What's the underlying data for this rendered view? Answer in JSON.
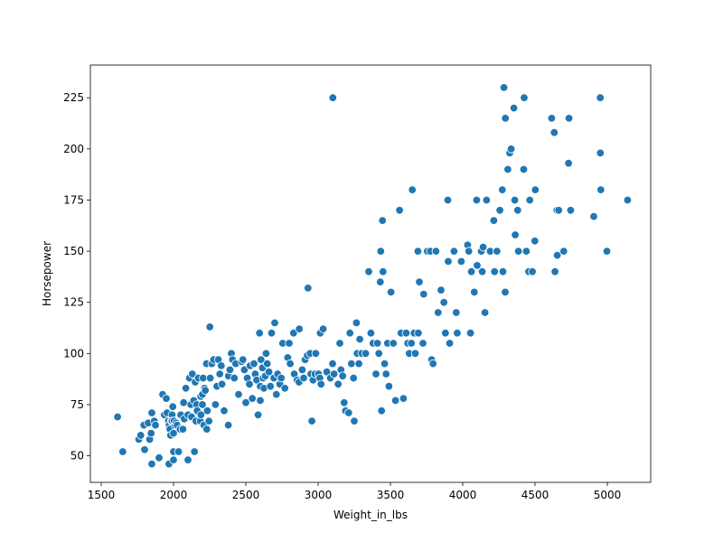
{
  "chart_data": {
    "type": "scatter",
    "xlabel": "Weight_in_lbs",
    "ylabel": "Horsepower",
    "xlim": [
      1425,
      5300
    ],
    "ylim": [
      37,
      241
    ],
    "xticks": [
      1500,
      2000,
      2500,
      3000,
      3500,
      4000,
      4500,
      5000
    ],
    "yticks": [
      50,
      75,
      100,
      125,
      150,
      175,
      200,
      225
    ],
    "grid": false,
    "legend": "none",
    "marker_color": "#1f77b4",
    "points": [
      [
        1613,
        69
      ],
      [
        1649,
        52
      ],
      [
        1760,
        58
      ],
      [
        1773,
        60
      ],
      [
        1795,
        65
      ],
      [
        1800,
        53
      ],
      [
        1825,
        66
      ],
      [
        1835,
        58
      ],
      [
        1845,
        61
      ],
      [
        1850,
        71
      ],
      [
        1850,
        46
      ],
      [
        1867,
        67
      ],
      [
        1875,
        65
      ],
      [
        1900,
        49
      ],
      [
        1925,
        80
      ],
      [
        1937,
        70
      ],
      [
        1950,
        78
      ],
      [
        1955,
        71
      ],
      [
        1965,
        67
      ],
      [
        1968,
        46
      ],
      [
        1970,
        65
      ],
      [
        1975,
        63
      ],
      [
        1980,
        60
      ],
      [
        1985,
        67
      ],
      [
        1990,
        70
      ],
      [
        1990,
        67
      ],
      [
        1995,
        74
      ],
      [
        2000,
        48
      ],
      [
        2000,
        52
      ],
      [
        2000,
        61
      ],
      [
        2003,
        67
      ],
      [
        2010,
        65
      ],
      [
        2019,
        66
      ],
      [
        2025,
        65
      ],
      [
        2035,
        52
      ],
      [
        2045,
        63
      ],
      [
        2050,
        70
      ],
      [
        2065,
        63
      ],
      [
        2070,
        76
      ],
      [
        2074,
        68
      ],
      [
        2085,
        83
      ],
      [
        2100,
        70
      ],
      [
        2100,
        48
      ],
      [
        2110,
        88
      ],
      [
        2120,
        75
      ],
      [
        2125,
        69
      ],
      [
        2130,
        90
      ],
      [
        2140,
        77
      ],
      [
        2145,
        52
      ],
      [
        2150,
        86
      ],
      [
        2155,
        67
      ],
      [
        2160,
        75
      ],
      [
        2164,
        72
      ],
      [
        2171,
        88
      ],
      [
        2185,
        67
      ],
      [
        2188,
        79
      ],
      [
        2190,
        70
      ],
      [
        2200,
        80
      ],
      [
        2200,
        75
      ],
      [
        2205,
        88
      ],
      [
        2210,
        65
      ],
      [
        2215,
        83
      ],
      [
        2220,
        82
      ],
      [
        2228,
        95
      ],
      [
        2230,
        63
      ],
      [
        2234,
        72
      ],
      [
        2245,
        67
      ],
      [
        2251,
        113
      ],
      [
        2254,
        88
      ],
      [
        2265,
        95
      ],
      [
        2278,
        97
      ],
      [
        2290,
        75
      ],
      [
        2300,
        84
      ],
      [
        2310,
        97
      ],
      [
        2320,
        90
      ],
      [
        2330,
        94
      ],
      [
        2335,
        85
      ],
      [
        2350,
        72
      ],
      [
        2379,
        65
      ],
      [
        2380,
        89
      ],
      [
        2390,
        92
      ],
      [
        2400,
        100
      ],
      [
        2408,
        97
      ],
      [
        2420,
        88
      ],
      [
        2430,
        95
      ],
      [
        2450,
        80
      ],
      [
        2472,
        96
      ],
      [
        2480,
        97
      ],
      [
        2490,
        92
      ],
      [
        2500,
        76
      ],
      [
        2510,
        88
      ],
      [
        2525,
        85
      ],
      [
        2530,
        94
      ],
      [
        2545,
        78
      ],
      [
        2556,
        95
      ],
      [
        2565,
        90
      ],
      [
        2575,
        87
      ],
      [
        2585,
        70
      ],
      [
        2595,
        110
      ],
      [
        2600,
        84
      ],
      [
        2600,
        77
      ],
      [
        2605,
        97
      ],
      [
        2615,
        93
      ],
      [
        2620,
        88
      ],
      [
        2625,
        83
      ],
      [
        2635,
        89
      ],
      [
        2640,
        100
      ],
      [
        2648,
        95
      ],
      [
        2660,
        91
      ],
      [
        2670,
        84
      ],
      [
        2678,
        110
      ],
      [
        2694,
        88
      ],
      [
        2700,
        115
      ],
      [
        2711,
        80
      ],
      [
        2720,
        90
      ],
      [
        2735,
        85
      ],
      [
        2745,
        88
      ],
      [
        2755,
        105
      ],
      [
        2770,
        83
      ],
      [
        2790,
        98
      ],
      [
        2800,
        105
      ],
      [
        2807,
        95
      ],
      [
        2830,
        110
      ],
      [
        2835,
        90
      ],
      [
        2855,
        87
      ],
      [
        2868,
        86
      ],
      [
        2870,
        112
      ],
      [
        2890,
        92
      ],
      [
        2900,
        88
      ],
      [
        2910,
        97
      ],
      [
        2925,
        99
      ],
      [
        2930,
        132
      ],
      [
        2945,
        100
      ],
      [
        2950,
        90
      ],
      [
        2957,
        67
      ],
      [
        2965,
        87
      ],
      [
        2979,
        90
      ],
      [
        2984,
        100
      ],
      [
        3003,
        90
      ],
      [
        3012,
        88
      ],
      [
        3015,
        110
      ],
      [
        3020,
        85
      ],
      [
        3035,
        112
      ],
      [
        3060,
        91
      ],
      [
        3085,
        88
      ],
      [
        3100,
        95
      ],
      [
        3102,
        225
      ],
      [
        3110,
        90
      ],
      [
        3139,
        85
      ],
      [
        3150,
        105
      ],
      [
        3158,
        92
      ],
      [
        3170,
        89
      ],
      [
        3180,
        76
      ],
      [
        3190,
        72
      ],
      [
        3211,
        71
      ],
      [
        3220,
        110
      ],
      [
        3230,
        95
      ],
      [
        3245,
        88
      ],
      [
        3250,
        67
      ],
      [
        3265,
        115
      ],
      [
        3270,
        100
      ],
      [
        3282,
        95
      ],
      [
        3288,
        107
      ],
      [
        3302,
        100
      ],
      [
        3329,
        100
      ],
      [
        3350,
        140
      ],
      [
        3365,
        110
      ],
      [
        3380,
        105
      ],
      [
        3400,
        90
      ],
      [
        3410,
        105
      ],
      [
        3420,
        100
      ],
      [
        3430,
        135
      ],
      [
        3433,
        150
      ],
      [
        3439,
        72
      ],
      [
        3445,
        165
      ],
      [
        3449,
        140
      ],
      [
        3460,
        95
      ],
      [
        3470,
        90
      ],
      [
        3480,
        105
      ],
      [
        3490,
        84
      ],
      [
        3504,
        130
      ],
      [
        3520,
        105
      ],
      [
        3535,
        77
      ],
      [
        3563,
        170
      ],
      [
        3574,
        110
      ],
      [
        3590,
        78
      ],
      [
        3609,
        110
      ],
      [
        3620,
        105
      ],
      [
        3630,
        100
      ],
      [
        3645,
        105
      ],
      [
        3651,
        180
      ],
      [
        3664,
        110
      ],
      [
        3672,
        100
      ],
      [
        3690,
        150
      ],
      [
        3693,
        110
      ],
      [
        3700,
        135
      ],
      [
        3725,
        105
      ],
      [
        3730,
        129
      ],
      [
        3755,
        150
      ],
      [
        3776,
        150
      ],
      [
        3785,
        97
      ],
      [
        3795,
        95
      ],
      [
        3815,
        150
      ],
      [
        3830,
        120
      ],
      [
        3850,
        131
      ],
      [
        3870,
        125
      ],
      [
        3880,
        110
      ],
      [
        3897,
        175
      ],
      [
        3900,
        145
      ],
      [
        3910,
        105
      ],
      [
        3940,
        150
      ],
      [
        3955,
        120
      ],
      [
        3962,
        110
      ],
      [
        3990,
        145
      ],
      [
        4034,
        153
      ],
      [
        4042,
        150
      ],
      [
        4054,
        110
      ],
      [
        4060,
        140
      ],
      [
        4080,
        130
      ],
      [
        4096,
        175
      ],
      [
        4100,
        143
      ],
      [
        4129,
        150
      ],
      [
        4135,
        140
      ],
      [
        4141,
        152
      ],
      [
        4154,
        120
      ],
      [
        4165,
        175
      ],
      [
        4190,
        150
      ],
      [
        4215,
        165
      ],
      [
        4220,
        140
      ],
      [
        4237,
        150
      ],
      [
        4257,
        170
      ],
      [
        4274,
        180
      ],
      [
        4278,
        140
      ],
      [
        4285,
        230
      ],
      [
        4294,
        130
      ],
      [
        4295,
        215
      ],
      [
        4312,
        190
      ],
      [
        4325,
        198
      ],
      [
        4335,
        200
      ],
      [
        4354,
        220
      ],
      [
        4360,
        175
      ],
      [
        4363,
        158
      ],
      [
        4380,
        170
      ],
      [
        4385,
        150
      ],
      [
        4422,
        190
      ],
      [
        4425,
        225
      ],
      [
        4440,
        150
      ],
      [
        4456,
        140
      ],
      [
        4464,
        175
      ],
      [
        4482,
        140
      ],
      [
        4499,
        155
      ],
      [
        4502,
        180
      ],
      [
        4615,
        215
      ],
      [
        4633,
        208
      ],
      [
        4638,
        140
      ],
      [
        4651,
        170
      ],
      [
        4654,
        148
      ],
      [
        4664,
        170
      ],
      [
        4699,
        150
      ],
      [
        4732,
        193
      ],
      [
        4735,
        215
      ],
      [
        4746,
        170
      ],
      [
        4906,
        167
      ],
      [
        4951,
        225
      ],
      [
        4952,
        198
      ],
      [
        4955,
        180
      ],
      [
        4997,
        150
      ],
      [
        5140,
        175
      ]
    ]
  }
}
